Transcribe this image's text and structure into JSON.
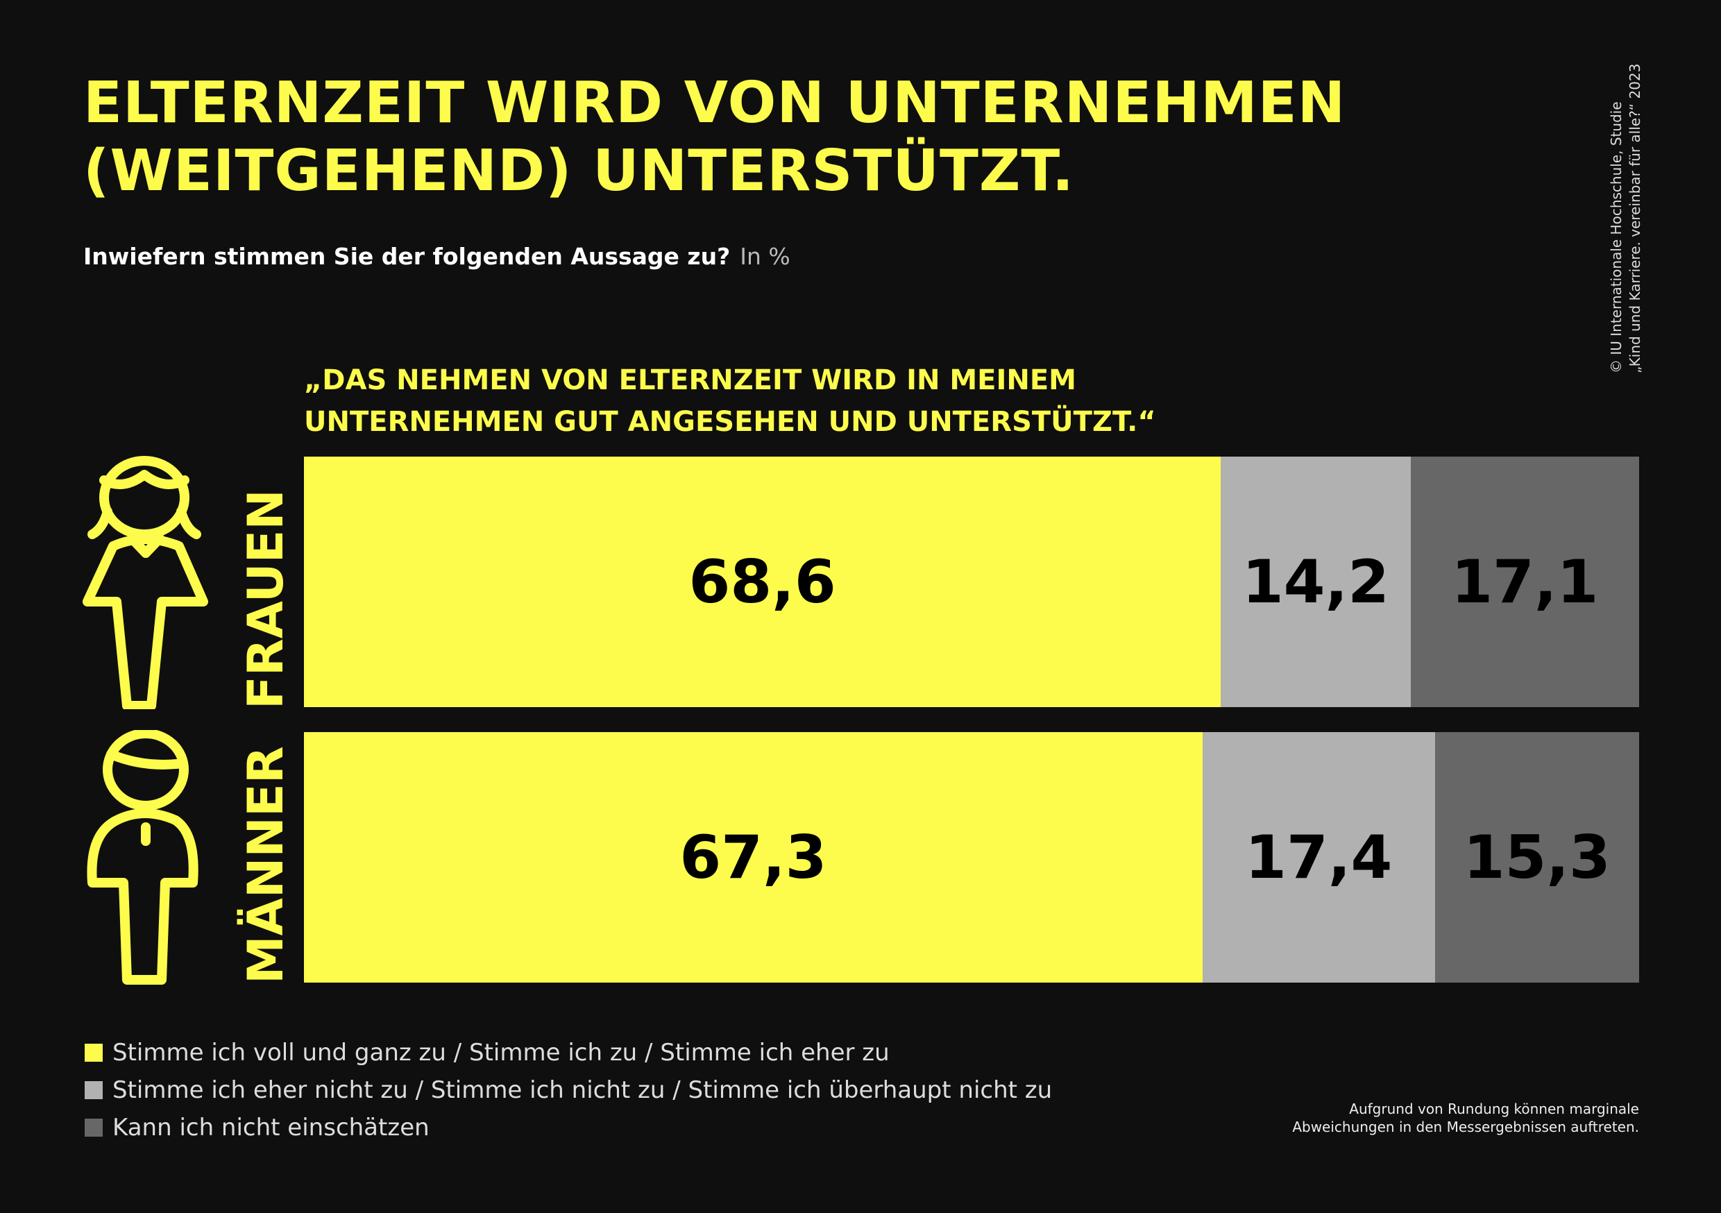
{
  "title": [
    "ELTERNZEIT WIRD VON UNTERNEHMEN",
    "(WEITGEHEND) UNTERSTÜTZT."
  ],
  "subtitle": {
    "question": "Inwiefern stimmen Sie der folgenden Aussage zu?",
    "unit": "In %"
  },
  "statement": [
    "„DAS NEHMEN VON ELTERNZEIT WIRD IN MEINEM",
    "UNTERNEHMEN GUT ANGESEHEN UND UNTERSTÜTZT.“"
  ],
  "source": [
    "© IU Internationale Hochschule, Studie",
    "„Kind und Karriere. vereinbar für alle?“ 2023"
  ],
  "footnote": [
    "Aufgrund von Rundung können marginale",
    "Abweichungen in den Messergebnissen auftreten."
  ],
  "chart_data": {
    "type": "bar",
    "orientation": "horizontal-stacked-100",
    "categories": [
      "FRAUEN",
      "MÄNNER"
    ],
    "series": [
      {
        "name": "Stimme ich voll und ganz zu / Stimme ich zu / Stimme ich eher zu",
        "color": "#fdfc4c",
        "values": [
          68.6,
          67.3
        ],
        "labels": [
          "68,6",
          "67,3"
        ]
      },
      {
        "name": "Stimme ich eher nicht zu / Stimme ich nicht zu / Stimme ich überhaupt nicht zu",
        "color": "#b1b1b1",
        "values": [
          14.2,
          17.4
        ],
        "labels": [
          "14,2",
          "17,4"
        ]
      },
      {
        "name": "Kann ich nicht einschätzen",
        "color": "#676767",
        "values": [
          17.1,
          15.3
        ],
        "labels": [
          "17,1",
          "15,3"
        ]
      }
    ],
    "legend": "bottom-left",
    "grid": false,
    "icons": [
      "woman-icon",
      "man-icon"
    ]
  }
}
